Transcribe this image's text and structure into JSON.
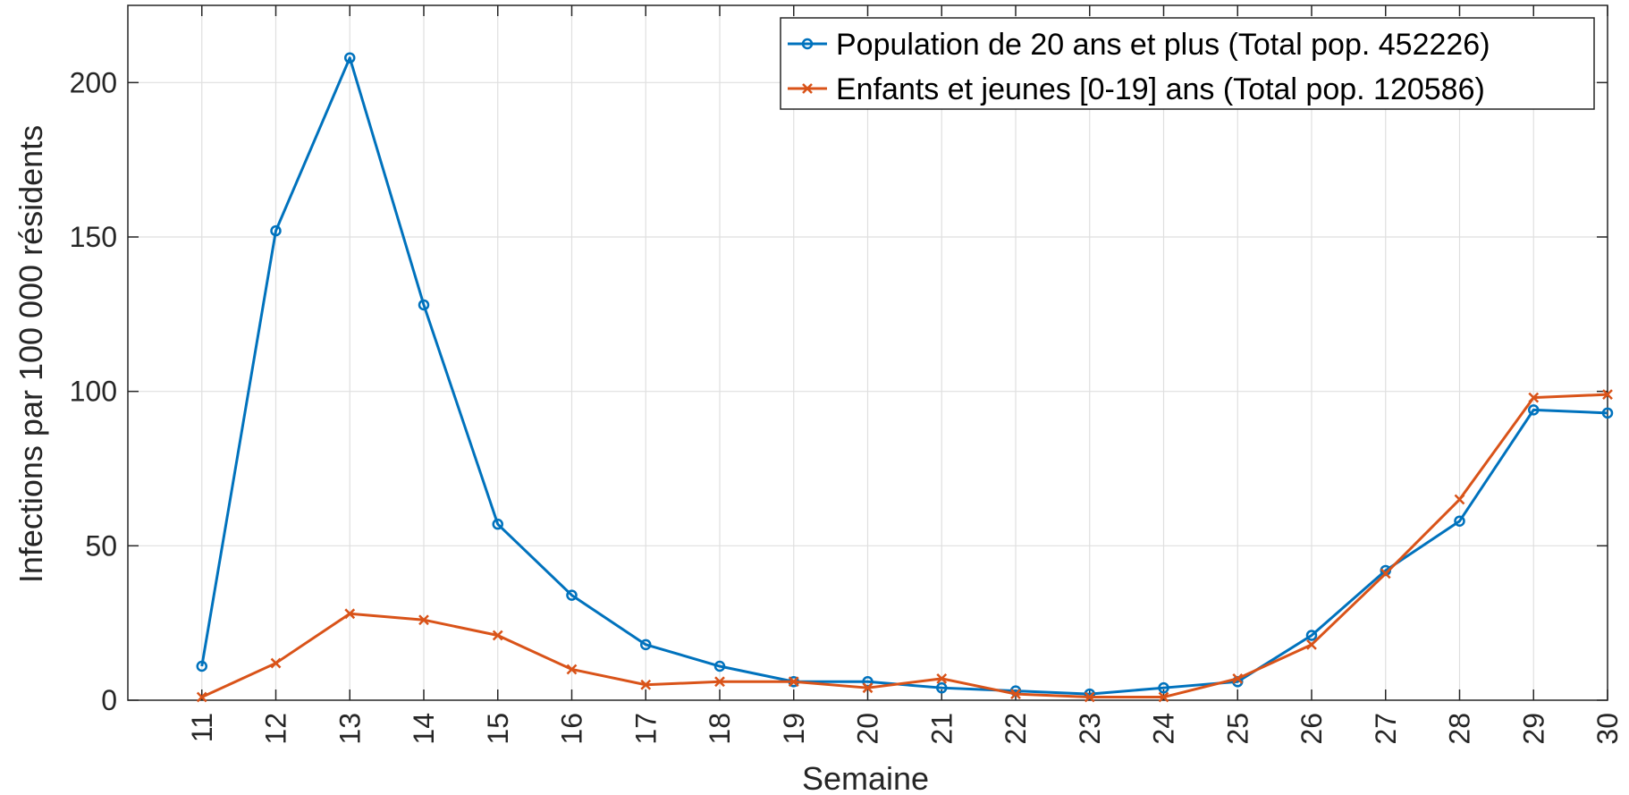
{
  "chart_data": {
    "type": "line",
    "xlabel": "Semaine",
    "ylabel": "Infections par 100 000 résidents",
    "x": [
      11,
      12,
      13,
      14,
      15,
      16,
      17,
      18,
      19,
      20,
      21,
      22,
      23,
      24,
      25,
      26,
      27,
      28,
      29,
      30
    ],
    "xlim": [
      10,
      30
    ],
    "ylim": [
      0,
      225
    ],
    "y_ticks": [
      0,
      50,
      100,
      150,
      200
    ],
    "grid": true,
    "legend_position": "top-right",
    "series": [
      {
        "name": "Population de 20 ans et plus (Total pop. 452226)",
        "color": "#0072BD",
        "marker": "circle",
        "values": [
          11,
          152,
          208,
          128,
          57,
          34,
          18,
          11,
          6,
          6,
          4,
          3,
          2,
          4,
          6,
          21,
          42,
          58,
          94,
          93
        ]
      },
      {
        "name": "Enfants et jeunes [0-19] ans (Total pop. 120586)",
        "color": "#D95319",
        "marker": "x",
        "values": [
          1,
          12,
          28,
          26,
          21,
          10,
          5,
          6,
          6,
          4,
          7,
          2,
          1,
          1,
          7,
          18,
          41,
          65,
          98,
          99
        ]
      }
    ]
  }
}
